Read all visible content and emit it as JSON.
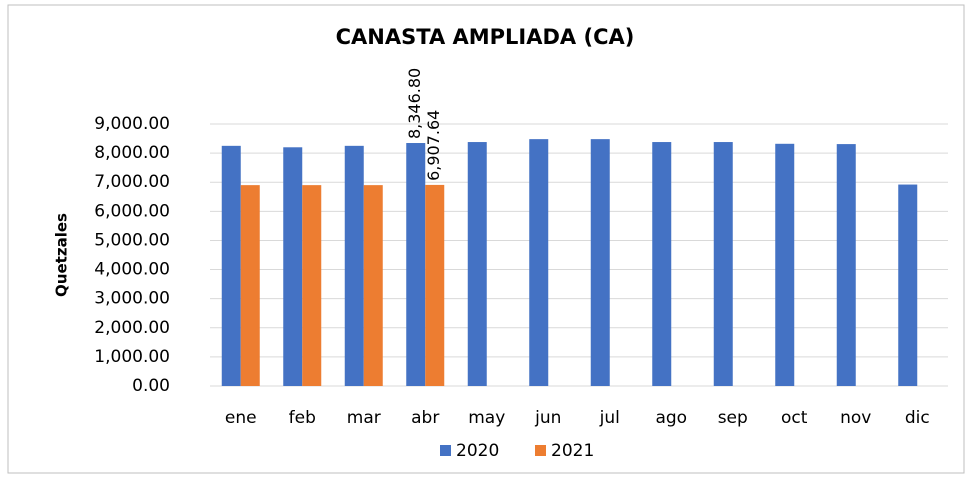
{
  "chart_data": {
    "type": "bar",
    "title": "CANASTA AMPLIADA (CA)",
    "ylabel": "Quetzales",
    "categories": [
      "ene",
      "feb",
      "mar",
      "abr",
      "may",
      "jun",
      "jul",
      "ago",
      "sep",
      "oct",
      "nov",
      "dic"
    ],
    "series": [
      {
        "name": "2020",
        "color": "#4472c4",
        "values": [
          8250,
          8200,
          8250,
          8346.8,
          8380,
          8480,
          8480,
          8380,
          8380,
          8320,
          8310,
          6920
        ],
        "value_labels": [
          null,
          null,
          null,
          "8,346.80",
          null,
          null,
          null,
          null,
          null,
          null,
          null,
          null
        ]
      },
      {
        "name": "2021",
        "color": "#ed7d31",
        "values": [
          6900,
          6900,
          6900,
          6907.64,
          null,
          null,
          null,
          null,
          null,
          null,
          null,
          null
        ],
        "value_labels": [
          null,
          null,
          null,
          "6,907.64",
          null,
          null,
          null,
          null,
          null,
          null,
          null,
          null
        ]
      }
    ],
    "ylim": [
      0,
      9000
    ],
    "yticks": [
      {
        "value": 0,
        "label": "0.00"
      },
      {
        "value": 1000,
        "label": "1,000.00"
      },
      {
        "value": 2000,
        "label": "2,000.00"
      },
      {
        "value": 3000,
        "label": "3,000.00"
      },
      {
        "value": 4000,
        "label": "4,000.00"
      },
      {
        "value": 5000,
        "label": "5,000.00"
      },
      {
        "value": 6000,
        "label": "6,000.00"
      },
      {
        "value": 7000,
        "label": "7,000.00"
      },
      {
        "value": 8000,
        "label": "8,000.00"
      },
      {
        "value": 9000,
        "label": "9,000.00"
      }
    ],
    "grid": true,
    "legend": "bottom"
  }
}
